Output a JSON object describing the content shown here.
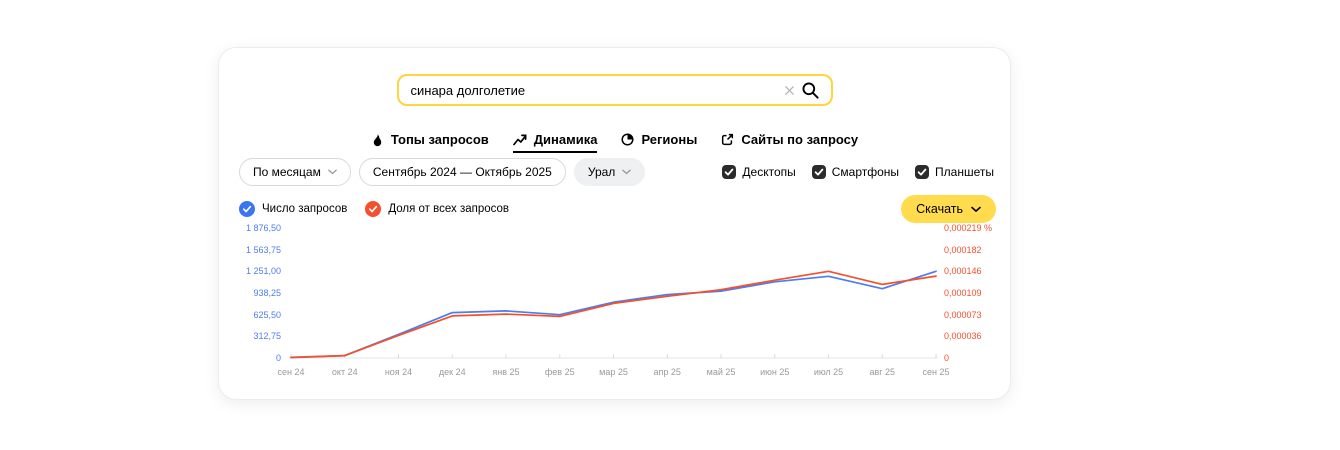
{
  "search": {
    "value": "синара долголетие"
  },
  "tabs": [
    {
      "label": "Топы запросов",
      "active": false
    },
    {
      "label": "Динамика",
      "active": true
    },
    {
      "label": "Регионы",
      "active": false
    },
    {
      "label": "Сайты по запросу",
      "active": false
    }
  ],
  "filters": {
    "grouping": "По месяцам",
    "date_range": "Сентябрь 2024 — Октябрь 2025",
    "region": "Урал"
  },
  "devices": [
    {
      "label": "Десктопы",
      "checked": true
    },
    {
      "label": "Смартфоны",
      "checked": true
    },
    {
      "label": "Планшеты",
      "checked": true
    }
  ],
  "legend": [
    {
      "label": "Число запросов",
      "color": "#3b76f0"
    },
    {
      "label": "Доля от всех запросов",
      "color": "#f4502c"
    }
  ],
  "download": {
    "label": "Скачать"
  },
  "colors": {
    "accent_yellow": "#ffdb4d",
    "blue_line": "#4d7cf0",
    "orange_line": "#f4502c"
  },
  "chart_data": {
    "type": "line",
    "x": [
      "сен 24",
      "окт 24",
      "ноя 24",
      "дек 24",
      "янв 25",
      "фев 25",
      "мар 25",
      "апр 25",
      "май 25",
      "июн 25",
      "июл 25",
      "авг 25",
      "сен 25"
    ],
    "series": [
      {
        "name": "Число запросов",
        "axis": "left",
        "color": "#4d7cf0",
        "values": [
          8,
          35,
          340,
          655,
          680,
          625,
          805,
          915,
          965,
          1100,
          1180,
          1000,
          1251
        ]
      },
      {
        "name": "Доля от всех запросов",
        "axis": "right",
        "color": "#f4502c",
        "values": [
          8e-07,
          4e-06,
          3.8e-05,
          7.1e-05,
          7.4e-05,
          7e-05,
          9.2e-05,
          0.000104,
          0.000115,
          0.000131,
          0.000146,
          0.000124,
          0.000138
        ]
      }
    ],
    "left_axis": {
      "title": "Число запросов",
      "min": 0,
      "max": 1876.5,
      "ticks": [
        "1 876,50",
        "1 563,75",
        "1 251,00",
        "938,25",
        "625,50",
        "312,75",
        "0"
      ]
    },
    "right_axis": {
      "title": "Доля от всех запросов",
      "min": 0,
      "max": 0.000219,
      "ticks": [
        "0,000219 %",
        "0,000182",
        "0,000146",
        "0,000109",
        "0,000073",
        "0,000036",
        "0"
      ]
    },
    "grid": false,
    "legend_position": "top-left"
  }
}
